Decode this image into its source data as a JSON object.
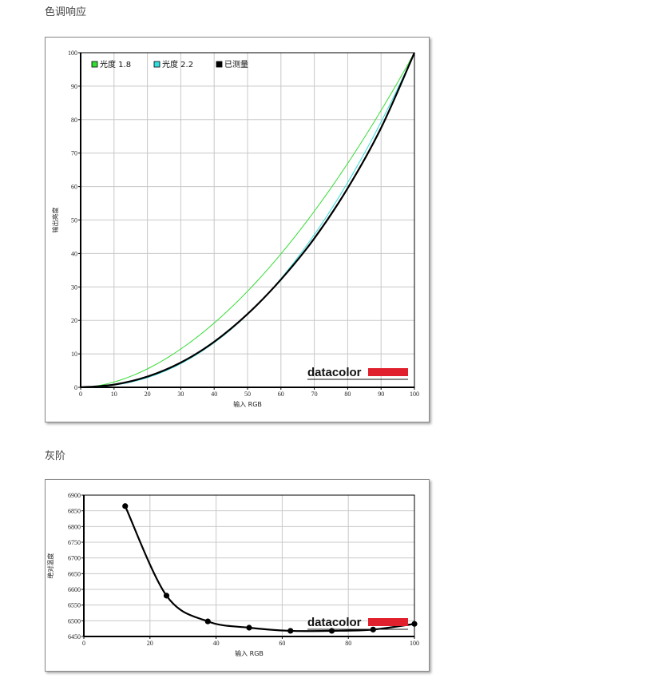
{
  "sections": {
    "tone_title": "色调响应",
    "gray_title": "灰阶"
  },
  "brand": {
    "name": "datacolor",
    "bar_color": "#e0202c"
  },
  "chart_data": [
    {
      "type": "line",
      "title": "",
      "xlabel": "输入 RGB",
      "ylabel": "输出亮度",
      "xlim": [
        0,
        100
      ],
      "ylim": [
        0,
        100
      ],
      "xticks": [
        0,
        10,
        20,
        30,
        40,
        50,
        60,
        70,
        80,
        90,
        100
      ],
      "yticks": [
        0,
        10,
        20,
        30,
        40,
        50,
        60,
        70,
        80,
        90,
        100
      ],
      "grid": true,
      "legend_position": "top-left",
      "series": [
        {
          "name": "光度 1.8",
          "color": "#33dd33",
          "gamma": 1.8,
          "x": [
            0,
            10,
            20,
            30,
            40,
            50,
            60,
            70,
            80,
            90,
            100
          ],
          "y": [
            0,
            1.6,
            5.5,
            11.5,
            19.2,
            28.7,
            39.9,
            52.6,
            66.9,
            82.7,
            100
          ]
        },
        {
          "name": "光度 2.2",
          "color": "#33dddd",
          "gamma": 2.2,
          "x": [
            0,
            10,
            20,
            30,
            40,
            50,
            60,
            70,
            80,
            90,
            100
          ],
          "y": [
            0,
            0.6,
            2.9,
            7.1,
            13.3,
            21.8,
            32.5,
            45.6,
            61.2,
            79.3,
            100
          ]
        },
        {
          "name": "已测量",
          "color": "#000000",
          "x": [
            0,
            10,
            20,
            30,
            40,
            50,
            60,
            70,
            80,
            90,
            100
          ],
          "y": [
            0,
            0.8,
            3.2,
            7.4,
            13.6,
            21.9,
            32.2,
            44.5,
            59.5,
            77.5,
            100
          ]
        }
      ]
    },
    {
      "type": "line",
      "title": "",
      "xlabel": "输入 RGB",
      "ylabel": "绝对温度",
      "xlim": [
        0,
        100
      ],
      "ylim": [
        6450,
        6900
      ],
      "xticks": [
        0,
        20,
        40,
        60,
        80,
        100
      ],
      "yticks": [
        6450,
        6500,
        6550,
        6600,
        6650,
        6700,
        6750,
        6800,
        6850,
        6900
      ],
      "grid": true,
      "series": [
        {
          "color": "#000000",
          "x": [
            12.5,
            25,
            37.5,
            50,
            62.5,
            75,
            87.5,
            100
          ],
          "y": [
            6865,
            6580,
            6498,
            6478,
            6468,
            6468,
            6472,
            6490
          ]
        }
      ]
    }
  ]
}
